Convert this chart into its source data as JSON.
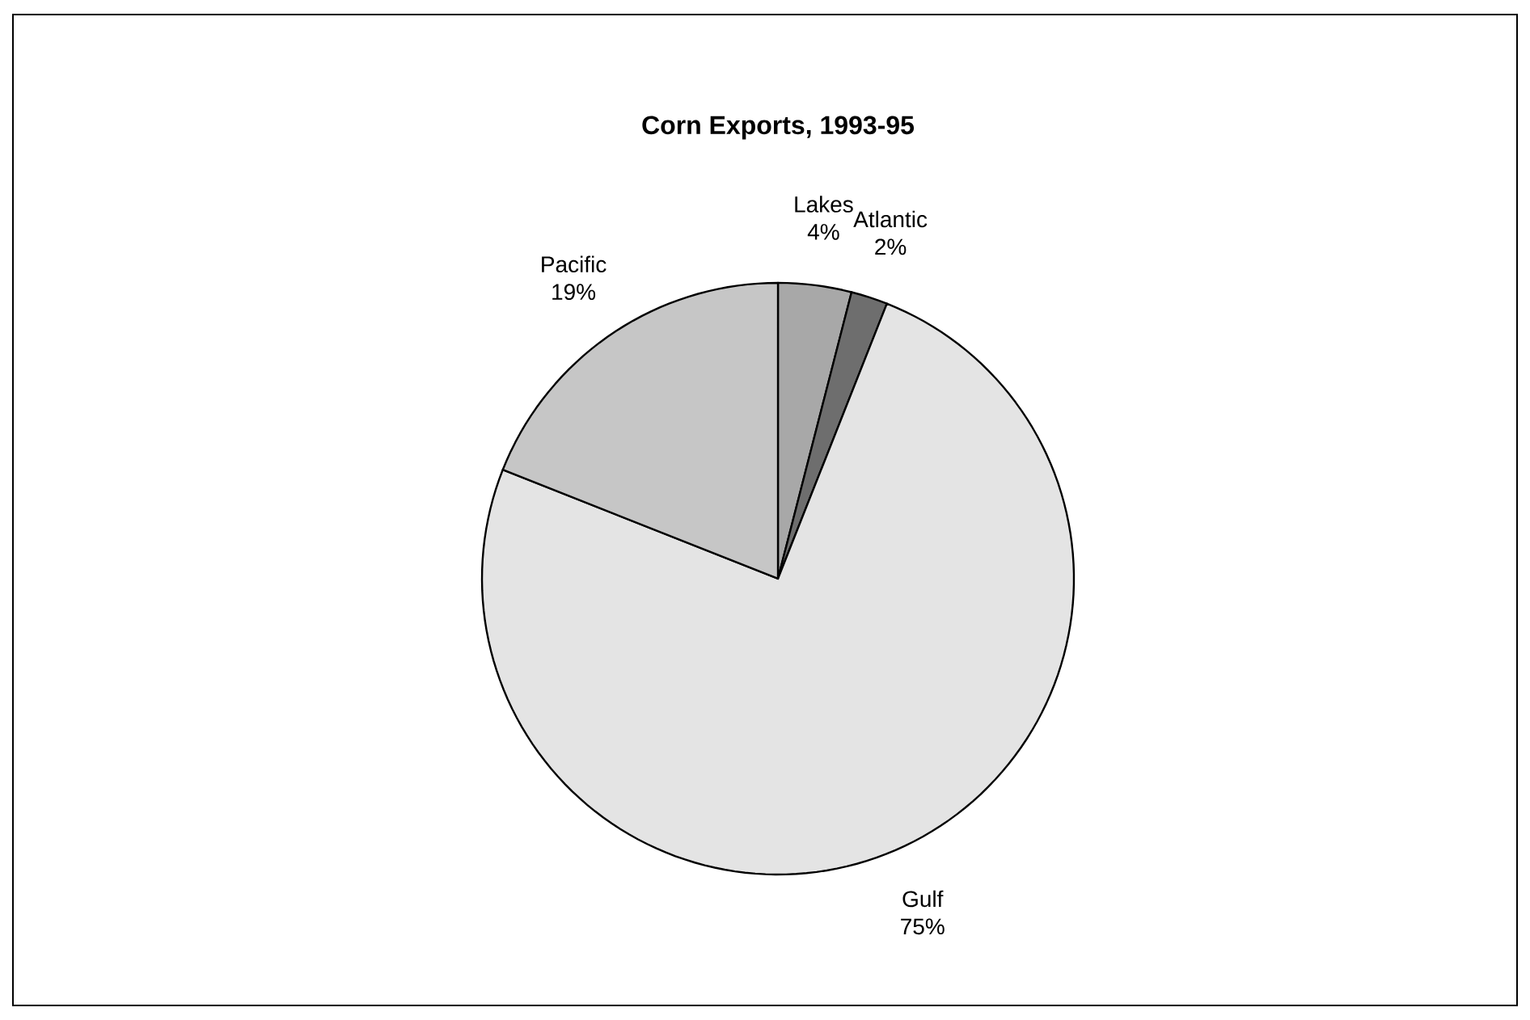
{
  "chart_data": {
    "type": "pie",
    "title": "Corn Exports, 1993-95",
    "categories": [
      "Lakes",
      "Atlantic",
      "Gulf",
      "Pacific"
    ],
    "values": [
      4,
      2,
      75,
      19
    ],
    "value_labels": [
      "4%",
      "2%",
      "75%",
      "19%"
    ],
    "colors": [
      "#a8a8a8",
      "#6e6e6e",
      "#e4e4e4",
      "#c6c6c6"
    ]
  }
}
